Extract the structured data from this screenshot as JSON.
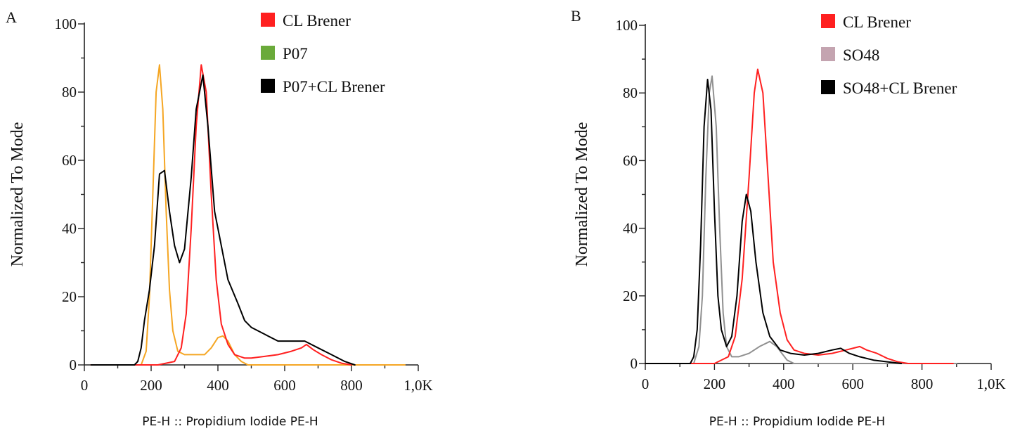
{
  "chart_data": [
    {
      "type": "line",
      "panel_label": "A",
      "xlabel": "PE-H :: Propidium Iodide PE-H",
      "ylabel": "Normalized To Mode",
      "xlim": [
        0,
        1000
      ],
      "ylim": [
        0,
        100
      ],
      "x_ticks": [
        0,
        200,
        400,
        600,
        800,
        1000
      ],
      "x_tick_labels": [
        "0",
        "200",
        "400",
        "600",
        "800",
        "1,0K"
      ],
      "y_ticks": [
        0,
        20,
        40,
        60,
        80,
        100
      ],
      "y_tick_labels": [
        "0",
        "20",
        "40",
        "60",
        "80",
        "100"
      ],
      "grid": false,
      "legend_position": "top-right",
      "legend": [
        {
          "label": "CL Brener",
          "swatch_color": "#ff2020"
        },
        {
          "label": "P07",
          "swatch_color": "#6aaa3a"
        },
        {
          "label": "P07+CL Brener",
          "swatch_color": "#000000"
        }
      ],
      "series": [
        {
          "line_color": "#f5a623",
          "points": [
            [
              20,
              0
            ],
            [
              170,
              0
            ],
            [
              185,
              4
            ],
            [
              195,
              20
            ],
            [
              205,
              50
            ],
            [
              215,
              80
            ],
            [
              225,
              88
            ],
            [
              235,
              75
            ],
            [
              245,
              45
            ],
            [
              255,
              22
            ],
            [
              265,
              10
            ],
            [
              280,
              4
            ],
            [
              300,
              3
            ],
            [
              320,
              3
            ],
            [
              340,
              3
            ],
            [
              360,
              3
            ],
            [
              380,
              5
            ],
            [
              400,
              8
            ],
            [
              415,
              8.5
            ],
            [
              430,
              7
            ],
            [
              450,
              3
            ],
            [
              470,
              1
            ],
            [
              490,
              0
            ],
            [
              600,
              0
            ],
            [
              700,
              0
            ],
            [
              800,
              0
            ],
            [
              960,
              0
            ]
          ]
        },
        {
          "line_color": "#ff2020",
          "points": [
            [
              20,
              0
            ],
            [
              220,
              0
            ],
            [
              270,
              1
            ],
            [
              290,
              5
            ],
            [
              305,
              15
            ],
            [
              320,
              40
            ],
            [
              335,
              70
            ],
            [
              350,
              88
            ],
            [
              365,
              80
            ],
            [
              380,
              50
            ],
            [
              395,
              25
            ],
            [
              410,
              12
            ],
            [
              430,
              6
            ],
            [
              450,
              3
            ],
            [
              480,
              2
            ],
            [
              500,
              2
            ],
            [
              540,
              2.5
            ],
            [
              580,
              3
            ],
            [
              620,
              4
            ],
            [
              650,
              5
            ],
            [
              665,
              6
            ],
            [
              685,
              4.5
            ],
            [
              710,
              3
            ],
            [
              740,
              1.5
            ],
            [
              770,
              0.5
            ],
            [
              800,
              0
            ]
          ]
        },
        {
          "line_color": "#000000",
          "points": [
            [
              20,
              0
            ],
            [
              150,
              0
            ],
            [
              160,
              1
            ],
            [
              170,
              5
            ],
            [
              180,
              13
            ],
            [
              195,
              22
            ],
            [
              210,
              35
            ],
            [
              225,
              56
            ],
            [
              240,
              57
            ],
            [
              255,
              45
            ],
            [
              270,
              35
            ],
            [
              285,
              30
            ],
            [
              300,
              34
            ],
            [
              320,
              55
            ],
            [
              335,
              75
            ],
            [
              355,
              85
            ],
            [
              370,
              70
            ],
            [
              390,
              45
            ],
            [
              410,
              35
            ],
            [
              430,
              25
            ],
            [
              460,
              18
            ],
            [
              480,
              13
            ],
            [
              500,
              11
            ],
            [
              540,
              9
            ],
            [
              580,
              7
            ],
            [
              620,
              7
            ],
            [
              660,
              7
            ],
            [
              700,
              5
            ],
            [
              740,
              3
            ],
            [
              780,
              1
            ],
            [
              810,
              0
            ]
          ]
        }
      ]
    },
    {
      "type": "line",
      "panel_label": "B",
      "xlabel": "PE-H :: Propidium Iodide PE-H",
      "ylabel": "Normalized To Mode",
      "xlim": [
        0,
        1000
      ],
      "ylim": [
        0,
        100
      ],
      "x_ticks": [
        0,
        200,
        400,
        600,
        800,
        1000
      ],
      "x_tick_labels": [
        "0",
        "200",
        "400",
        "600",
        "800",
        "1,0K"
      ],
      "y_ticks": [
        0,
        20,
        40,
        60,
        80,
        100
      ],
      "y_tick_labels": [
        "0",
        "20",
        "40",
        "60",
        "80",
        "100"
      ],
      "grid": false,
      "legend_position": "top-right",
      "legend": [
        {
          "label": "CL Brener",
          "swatch_color": "#ff2020"
        },
        {
          "label": "SO48",
          "swatch_color": "#c4a4b0"
        },
        {
          "label": "SO48+CL Brener",
          "swatch_color": "#000000"
        }
      ],
      "series": [
        {
          "line_color": "#909090",
          "points": [
            [
              0,
              0
            ],
            [
              140,
              0
            ],
            [
              155,
              5
            ],
            [
              165,
              20
            ],
            [
              175,
              55
            ],
            [
              185,
              80
            ],
            [
              193,
              85
            ],
            [
              205,
              70
            ],
            [
              215,
              40
            ],
            [
              225,
              15
            ],
            [
              235,
              5
            ],
            [
              250,
              2
            ],
            [
              270,
              2
            ],
            [
              300,
              3
            ],
            [
              330,
              5
            ],
            [
              360,
              6.5
            ],
            [
              380,
              5
            ],
            [
              395,
              3
            ],
            [
              410,
              1
            ],
            [
              430,
              0
            ],
            [
              900,
              0
            ]
          ]
        },
        {
          "line_color": "#ff2020",
          "points": [
            [
              0,
              0
            ],
            [
              200,
              0
            ],
            [
              240,
              2
            ],
            [
              260,
              8
            ],
            [
              280,
              25
            ],
            [
              300,
              55
            ],
            [
              315,
              80
            ],
            [
              325,
              87
            ],
            [
              340,
              80
            ],
            [
              355,
              55
            ],
            [
              370,
              30
            ],
            [
              390,
              15
            ],
            [
              410,
              7
            ],
            [
              430,
              4
            ],
            [
              460,
              3
            ],
            [
              500,
              2.5
            ],
            [
              540,
              3
            ],
            [
              580,
              4
            ],
            [
              600,
              4.5
            ],
            [
              620,
              5
            ],
            [
              640,
              4
            ],
            [
              670,
              3
            ],
            [
              700,
              1.5
            ],
            [
              730,
              0.5
            ],
            [
              760,
              0
            ],
            [
              890,
              0
            ]
          ]
        },
        {
          "line_color": "#000000",
          "points": [
            [
              0,
              0
            ],
            [
              130,
              0
            ],
            [
              140,
              2
            ],
            [
              150,
              10
            ],
            [
              160,
              35
            ],
            [
              170,
              70
            ],
            [
              180,
              84
            ],
            [
              190,
              75
            ],
            [
              200,
              45
            ],
            [
              210,
              20
            ],
            [
              220,
              10
            ],
            [
              235,
              5
            ],
            [
              250,
              8
            ],
            [
              265,
              20
            ],
            [
              280,
              42
            ],
            [
              292,
              50
            ],
            [
              305,
              45
            ],
            [
              320,
              30
            ],
            [
              340,
              15
            ],
            [
              360,
              8
            ],
            [
              390,
              4
            ],
            [
              420,
              3
            ],
            [
              460,
              2.5
            ],
            [
              500,
              3
            ],
            [
              540,
              4
            ],
            [
              565,
              4.5
            ],
            [
              590,
              3
            ],
            [
              620,
              2
            ],
            [
              660,
              1
            ],
            [
              700,
              0.5
            ],
            [
              740,
              0
            ]
          ]
        }
      ]
    }
  ]
}
